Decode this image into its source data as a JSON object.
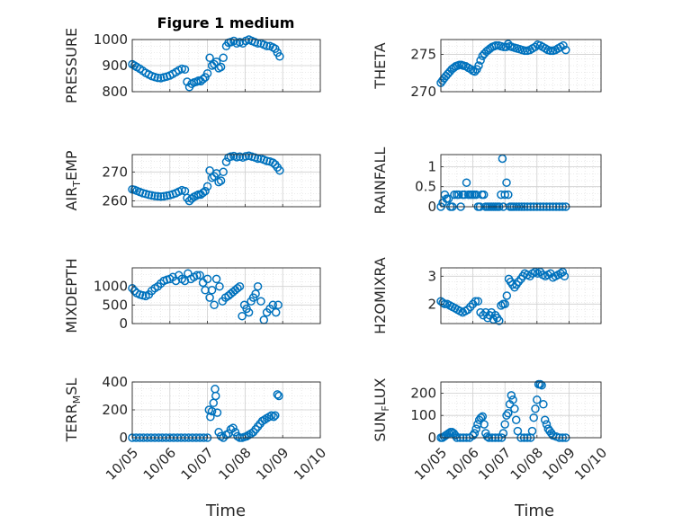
{
  "figure": {
    "title": "Figure 1 medium",
    "x_tick_labels": [
      "10/05",
      "10/06",
      "10/07",
      "10/08",
      "10/09",
      "10/10"
    ],
    "x_label": "Time",
    "marker_color": "#0072BD"
  },
  "chart_data": [
    {
      "type": "scatter",
      "ylabel": "PRESSURE",
      "ylim": [
        800,
        1000
      ],
      "yticks": [
        "800",
        "900",
        "1000"
      ],
      "xlim": [
        0,
        5
      ],
      "x": [
        0.0,
        0.06,
        0.12,
        0.2,
        0.28,
        0.36,
        0.44,
        0.52,
        0.6,
        0.68,
        0.76,
        0.84,
        0.92,
        1.0,
        1.08,
        1.16,
        1.24,
        1.32,
        1.4,
        1.46,
        1.52,
        1.58,
        1.64,
        1.7,
        1.76,
        1.82,
        1.88,
        1.94,
        2.0,
        2.06,
        2.12,
        2.18,
        2.24,
        2.3,
        2.36,
        2.42,
        2.5,
        2.56,
        2.62,
        2.7,
        2.78,
        2.86,
        2.94,
        3.02,
        3.1,
        3.18,
        3.26,
        3.34,
        3.42,
        3.5,
        3.58,
        3.66,
        3.74,
        3.8,
        3.86,
        3.92
      ],
      "y": [
        905,
        900,
        895,
        888,
        880,
        872,
        866,
        860,
        856,
        853,
        852,
        855,
        858,
        862,
        868,
        875,
        882,
        888,
        885,
        838,
        818,
        830,
        835,
        838,
        842,
        840,
        848,
        855,
        870,
        930,
        900,
        905,
        915,
        890,
        895,
        930,
        975,
        988,
        990,
        995,
        985,
        990,
        985,
        995,
        1000,
        995,
        990,
        985,
        985,
        980,
        975,
        975,
        970,
        965,
        950,
        935
      ]
    },
    {
      "type": "scatter",
      "ylabel": "THETA",
      "ylim": [
        270,
        277
      ],
      "yticks": [
        "270",
        "275"
      ],
      "xlim": [
        0,
        5
      ],
      "x": [
        0.0,
        0.05,
        0.1,
        0.16,
        0.22,
        0.28,
        0.34,
        0.4,
        0.46,
        0.52,
        0.58,
        0.64,
        0.7,
        0.78,
        0.86,
        0.94,
        1.0,
        1.06,
        1.12,
        1.18,
        1.24,
        1.3,
        1.36,
        1.42,
        1.48,
        1.54,
        1.6,
        1.66,
        1.72,
        1.8,
        1.88,
        1.96,
        2.04,
        2.1,
        2.16,
        2.22,
        2.3,
        2.38,
        2.46,
        2.54,
        2.62,
        2.7,
        2.78,
        2.86,
        2.94,
        3.02,
        3.1,
        3.18,
        3.26,
        3.34,
        3.42,
        3.5,
        3.58,
        3.66,
        3.74,
        3.82,
        3.9
      ],
      "y": [
        271.2,
        271.5,
        271.8,
        272.1,
        272.4,
        272.7,
        273.0,
        273.2,
        273.4,
        273.5,
        273.6,
        273.6,
        273.5,
        273.4,
        273.2,
        273.0,
        272.8,
        272.7,
        273.0,
        273.5,
        274.2,
        274.8,
        275.1,
        275.4,
        275.6,
        275.8,
        276.0,
        276.1,
        276.2,
        276.2,
        276.1,
        276.0,
        276.0,
        276.4,
        276.1,
        276.0,
        275.9,
        275.8,
        275.7,
        275.6,
        275.5,
        275.5,
        275.6,
        275.8,
        276.0,
        276.3,
        276.2,
        276.0,
        275.8,
        275.6,
        275.5,
        275.5,
        275.6,
        275.8,
        276.0,
        276.2,
        275.6
      ]
    },
    {
      "type": "scatter",
      "ylabel": "AIR_TEMP",
      "ylim": [
        258,
        276
      ],
      "yticks": [
        "260",
        "270"
      ],
      "xlim": [
        0,
        5
      ],
      "x": [
        0.0,
        0.06,
        0.12,
        0.2,
        0.28,
        0.36,
        0.44,
        0.52,
        0.6,
        0.68,
        0.76,
        0.84,
        0.92,
        1.0,
        1.08,
        1.16,
        1.24,
        1.32,
        1.4,
        1.46,
        1.52,
        1.58,
        1.64,
        1.7,
        1.76,
        1.82,
        1.88,
        1.94,
        2.0,
        2.06,
        2.12,
        2.18,
        2.24,
        2.3,
        2.36,
        2.42,
        2.5,
        2.56,
        2.62,
        2.7,
        2.78,
        2.86,
        2.94,
        3.02,
        3.1,
        3.18,
        3.26,
        3.34,
        3.42,
        3.5,
        3.58,
        3.66,
        3.74,
        3.8,
        3.86,
        3.92
      ],
      "y": [
        264.0,
        263.8,
        263.5,
        263.1,
        262.7,
        262.4,
        262.1,
        261.9,
        261.7,
        261.6,
        261.5,
        261.6,
        261.8,
        262.0,
        262.3,
        262.7,
        263.2,
        263.7,
        263.4,
        261.0,
        260.0,
        260.8,
        261.4,
        261.8,
        262.2,
        262.2,
        262.8,
        263.4,
        265.0,
        270.5,
        268.0,
        268.5,
        269.5,
        266.5,
        267.0,
        270.0,
        273.5,
        275.0,
        275.3,
        275.5,
        275.1,
        275.3,
        275.0,
        275.4,
        275.6,
        275.3,
        275.0,
        274.6,
        274.6,
        274.2,
        273.8,
        273.6,
        273.2,
        272.6,
        271.6,
        270.5
      ]
    },
    {
      "type": "scatter",
      "ylabel": "RAINFALL",
      "ylim": [
        0,
        1.3
      ],
      "yticks": [
        "0",
        "0.5",
        "1"
      ],
      "xlim": [
        0,
        5
      ],
      "x": [
        0.0,
        0.06,
        0.12,
        0.18,
        0.24,
        0.3,
        0.36,
        0.42,
        0.5,
        0.56,
        0.62,
        0.68,
        0.74,
        0.8,
        0.86,
        0.92,
        0.98,
        1.04,
        1.1,
        1.16,
        1.22,
        1.28,
        1.34,
        1.4,
        1.46,
        1.52,
        1.58,
        1.64,
        1.7,
        1.76,
        1.82,
        1.88,
        1.92,
        1.95,
        2.0,
        2.05,
        2.1,
        2.16,
        2.22,
        2.28,
        2.36,
        2.44,
        2.52,
        2.6,
        2.7,
        2.8,
        2.9,
        3.0,
        3.1,
        3.2,
        3.3,
        3.4,
        3.5,
        3.6,
        3.7,
        3.8,
        3.9
      ],
      "y": [
        0.0,
        0.1,
        0.3,
        0.2,
        0.2,
        0.0,
        0.0,
        0.3,
        0.3,
        0.3,
        0.0,
        0.3,
        0.3,
        0.6,
        0.3,
        0.3,
        0.3,
        0.3,
        0.3,
        0.0,
        0.0,
        0.3,
        0.3,
        0.0,
        0.0,
        0.0,
        0.0,
        0.0,
        0.0,
        0.0,
        0.0,
        0.3,
        1.2,
        0.0,
        0.3,
        0.6,
        0.3,
        0.0,
        0.0,
        0.0,
        0.0,
        0.0,
        0.0,
        0.0,
        0.0,
        0.0,
        0.0,
        0.0,
        0.0,
        0.0,
        0.0,
        0.0,
        0.0,
        0.0,
        0.0,
        0.0,
        0.0
      ]
    },
    {
      "type": "scatter",
      "ylabel": "MIXDEPTH",
      "ylim": [
        0,
        1500
      ],
      "yticks": [
        "0",
        "500",
        "1000"
      ],
      "xlim": [
        0,
        5
      ],
      "x": [
        0.0,
        0.06,
        0.12,
        0.2,
        0.28,
        0.36,
        0.44,
        0.52,
        0.6,
        0.68,
        0.76,
        0.84,
        0.92,
        1.0,
        1.08,
        1.16,
        1.24,
        1.32,
        1.4,
        1.48,
        1.56,
        1.64,
        1.72,
        1.8,
        1.88,
        1.94,
        2.0,
        2.06,
        2.12,
        2.18,
        2.24,
        2.32,
        2.4,
        2.48,
        2.56,
        2.62,
        2.68,
        2.74,
        2.8,
        2.86,
        2.92,
        2.98,
        3.04,
        3.1,
        3.16,
        3.22,
        3.28,
        3.34,
        3.42,
        3.5,
        3.58,
        3.66,
        3.74,
        3.82,
        3.88
      ],
      "y": [
        950,
        880,
        820,
        780,
        760,
        740,
        780,
        880,
        950,
        1000,
        1080,
        1150,
        1180,
        1200,
        1250,
        1150,
        1300,
        1200,
        1150,
        1350,
        1200,
        1250,
        1300,
        1300,
        1100,
        900,
        1200,
        700,
        900,
        500,
        1200,
        1000,
        600,
        700,
        750,
        800,
        850,
        900,
        950,
        1000,
        200,
        500,
        400,
        300,
        600,
        700,
        800,
        1000,
        600,
        100,
        300,
        400,
        500,
        300,
        500
      ]
    },
    {
      "type": "scatter",
      "ylabel": "H2OMIXRA",
      "ylim": [
        1.3,
        3.3
      ],
      "yticks": [
        "2",
        "3"
      ],
      "xlim": [
        0,
        5
      ],
      "x": [
        0.0,
        0.06,
        0.12,
        0.2,
        0.28,
        0.36,
        0.44,
        0.52,
        0.6,
        0.68,
        0.76,
        0.84,
        0.92,
        1.0,
        1.08,
        1.16,
        1.24,
        1.32,
        1.4,
        1.46,
        1.52,
        1.58,
        1.64,
        1.7,
        1.76,
        1.82,
        1.88,
        1.94,
        2.0,
        2.06,
        2.12,
        2.18,
        2.24,
        2.3,
        2.36,
        2.42,
        2.5,
        2.56,
        2.62,
        2.7,
        2.78,
        2.86,
        2.94,
        3.02,
        3.1,
        3.18,
        3.26,
        3.34,
        3.42,
        3.5,
        3.58,
        3.66,
        3.74,
        3.8,
        3.86
      ],
      "y": [
        2.1,
        2.05,
        2.0,
        2.0,
        1.95,
        1.9,
        1.85,
        1.8,
        1.75,
        1.7,
        1.75,
        1.8,
        1.9,
        2.0,
        2.1,
        2.1,
        1.7,
        1.6,
        1.7,
        1.5,
        1.6,
        1.7,
        1.45,
        1.6,
        1.5,
        1.4,
        1.95,
        2.0,
        2.0,
        2.3,
        2.9,
        2.8,
        2.7,
        2.6,
        2.7,
        2.8,
        2.9,
        3.0,
        3.1,
        3.05,
        3.0,
        3.1,
        3.15,
        3.1,
        3.15,
        3.05,
        3.0,
        3.05,
        3.1,
        2.95,
        3.0,
        3.05,
        3.1,
        3.15,
        3.0
      ]
    },
    {
      "type": "scatter",
      "ylabel": "TERR_MSL",
      "ylim": [
        0,
        400
      ],
      "yticks": [
        "0",
        "200",
        "400"
      ],
      "xlim": [
        0,
        5
      ],
      "x": [
        0.0,
        0.1,
        0.2,
        0.3,
        0.4,
        0.5,
        0.6,
        0.7,
        0.8,
        0.9,
        1.0,
        1.1,
        1.2,
        1.3,
        1.4,
        1.5,
        1.6,
        1.7,
        1.8,
        1.9,
        2.0,
        2.04,
        2.08,
        2.12,
        2.16,
        2.2,
        2.22,
        2.26,
        2.3,
        2.36,
        2.42,
        2.5,
        2.56,
        2.62,
        2.68,
        2.74,
        2.8,
        2.86,
        2.92,
        2.98,
        3.04,
        3.1,
        3.16,
        3.22,
        3.28,
        3.34,
        3.4,
        3.46,
        3.52,
        3.58,
        3.64,
        3.7,
        3.76,
        3.8,
        3.86,
        3.9
      ],
      "y": [
        0,
        0,
        0,
        0,
        0,
        0,
        0,
        0,
        0,
        0,
        0,
        0,
        0,
        0,
        0,
        0,
        0,
        0,
        0,
        0,
        0,
        200,
        150,
        190,
        250,
        350,
        300,
        180,
        40,
        10,
        0,
        20,
        30,
        60,
        70,
        40,
        10,
        0,
        0,
        5,
        10,
        20,
        30,
        40,
        60,
        80,
        100,
        120,
        130,
        140,
        150,
        160,
        150,
        160,
        310,
        300
      ]
    },
    {
      "type": "scatter",
      "ylabel": "SUN_FLUX",
      "ylim": [
        0,
        250
      ],
      "yticks": [
        "0",
        "100",
        "200"
      ],
      "xlim": [
        0,
        5
      ],
      "x": [
        0.0,
        0.05,
        0.1,
        0.15,
        0.2,
        0.25,
        0.3,
        0.35,
        0.4,
        0.45,
        0.5,
        0.6,
        0.7,
        0.8,
        0.9,
        1.0,
        1.05,
        1.1,
        1.15,
        1.2,
        1.25,
        1.3,
        1.35,
        1.4,
        1.45,
        1.5,
        1.6,
        1.7,
        1.8,
        1.9,
        1.95,
        2.0,
        2.05,
        2.1,
        2.15,
        2.2,
        2.25,
        2.3,
        2.35,
        2.4,
        2.5,
        2.6,
        2.7,
        2.8,
        2.85,
        2.9,
        2.95,
        3.0,
        3.05,
        3.1,
        3.15,
        3.2,
        3.25,
        3.3,
        3.35,
        3.4,
        3.45,
        3.5,
        3.6,
        3.7,
        3.8,
        3.9
      ],
      "y": [
        0,
        0,
        5,
        10,
        15,
        20,
        25,
        25,
        20,
        10,
        0,
        0,
        0,
        0,
        0,
        10,
        20,
        40,
        60,
        80,
        90,
        95,
        60,
        20,
        5,
        0,
        0,
        0,
        0,
        0,
        20,
        60,
        100,
        110,
        150,
        190,
        170,
        130,
        80,
        30,
        0,
        0,
        0,
        0,
        30,
        90,
        130,
        170,
        240,
        240,
        235,
        150,
        80,
        60,
        40,
        30,
        20,
        10,
        5,
        0,
        0,
        0
      ]
    }
  ]
}
